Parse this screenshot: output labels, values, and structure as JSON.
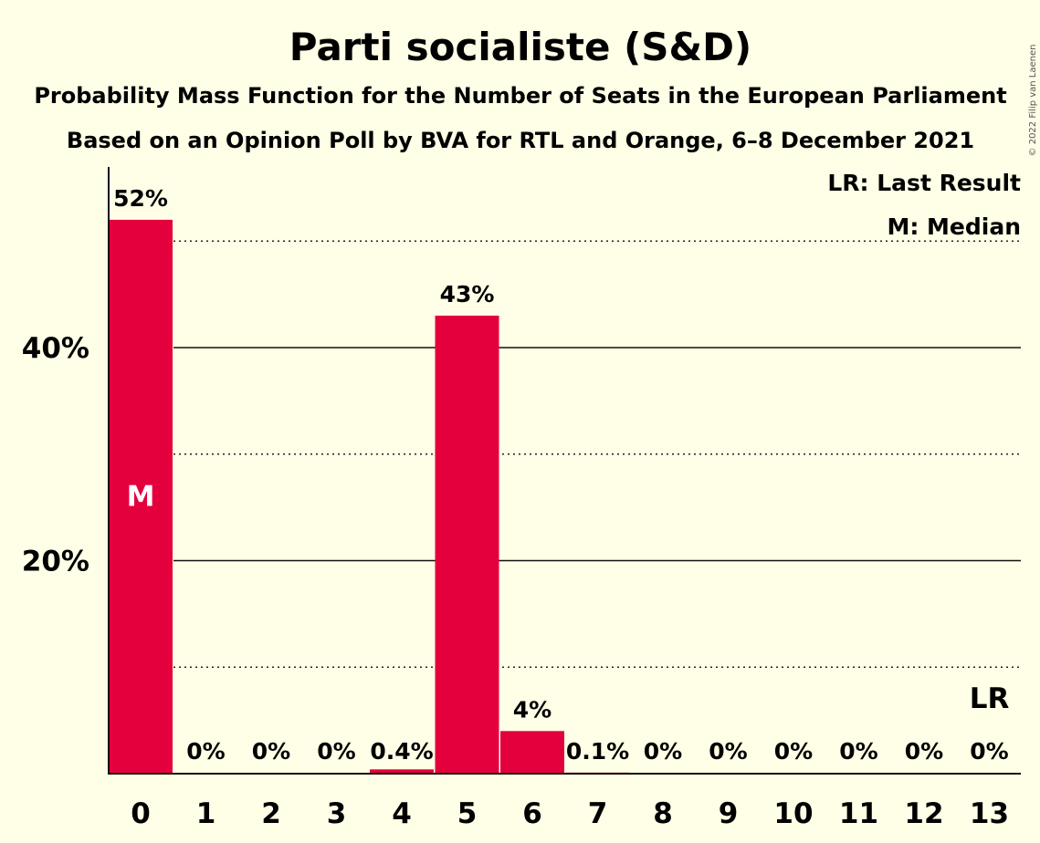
{
  "chart_data": {
    "type": "bar",
    "title": "Parti socialiste (S&D)",
    "subtitle": "Probability Mass Function for the Number of Seats in the European Parliament",
    "source": "Based on an Opinion Poll by BVA for RTL and Orange, 6–8 December 2021",
    "copyright": "© 2022 Filip van Laenen",
    "categories": [
      "0",
      "1",
      "2",
      "3",
      "4",
      "5",
      "6",
      "7",
      "8",
      "9",
      "10",
      "11",
      "12",
      "13"
    ],
    "values": [
      52,
      0,
      0,
      0,
      0.4,
      43,
      4,
      0.1,
      0,
      0,
      0,
      0,
      0,
      0
    ],
    "value_labels": [
      "52%",
      "0%",
      "0%",
      "0%",
      "0.4%",
      "43%",
      "4%",
      "0.1%",
      "0%",
      "0%",
      "0%",
      "0%",
      "0%",
      "0%"
    ],
    "ylim": [
      0,
      56
    ],
    "y_ticks": [
      {
        "value": 20,
        "label": "20%"
      },
      {
        "value": 40,
        "label": "40%"
      }
    ],
    "y_minor_gridlines": [
      10,
      30,
      50
    ],
    "median_index": 0,
    "median_marker": "M",
    "last_result_index": 13,
    "last_result_marker": "LR",
    "legend": [
      "LR: Last Result",
      "M: Median"
    ],
    "bar_color": "#E4003C",
    "background_color": "#FFFEE6"
  }
}
